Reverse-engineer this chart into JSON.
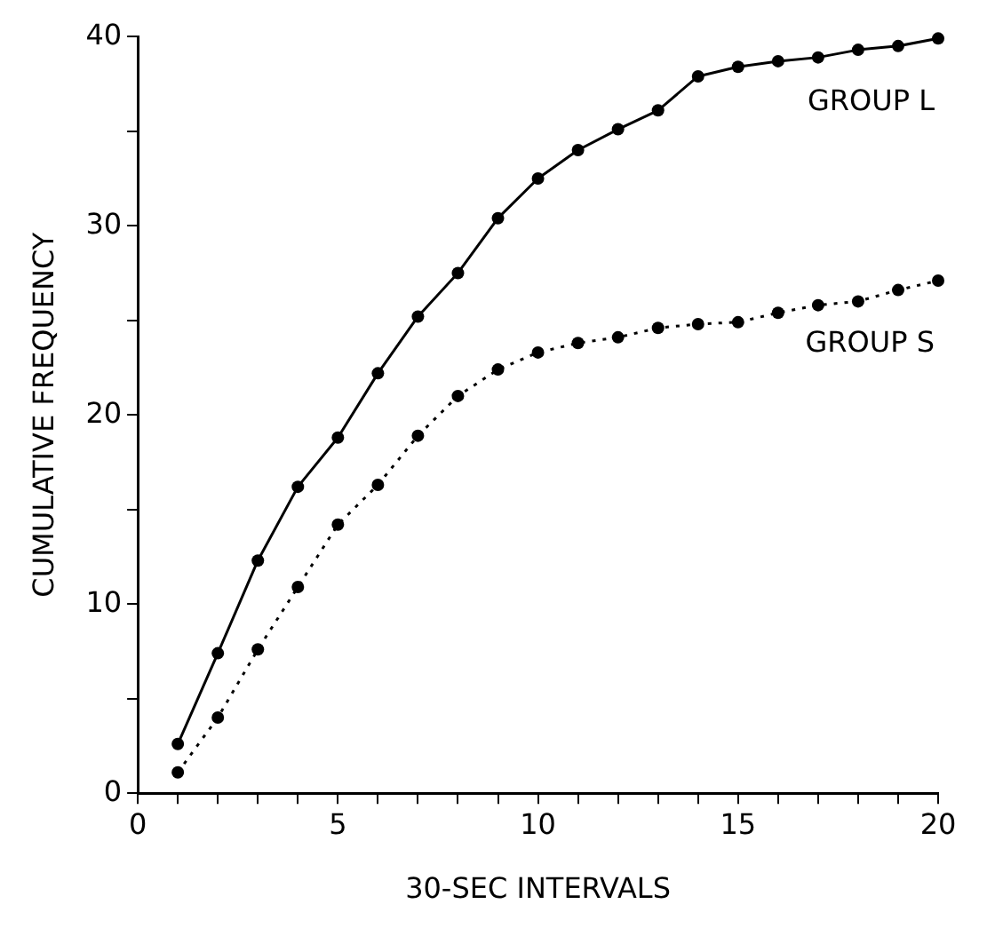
{
  "chart_data": {
    "type": "line",
    "xlabel": "30-SEC INTERVALS",
    "ylabel": "CUMULATIVE FREQUENCY",
    "x": [
      1,
      2,
      3,
      4,
      5,
      6,
      7,
      8,
      9,
      10,
      11,
      12,
      13,
      14,
      15,
      16,
      17,
      18,
      19,
      20
    ],
    "series": [
      {
        "name": "GROUP L",
        "color": "#000000",
        "line_style": "solid",
        "values": [
          2.6,
          7.4,
          12.3,
          16.2,
          18.8,
          22.2,
          25.2,
          27.5,
          30.4,
          32.5,
          34.0,
          35.1,
          36.1,
          37.9,
          38.4,
          38.7,
          38.9,
          39.3,
          39.5,
          39.9
        ]
      },
      {
        "name": "GROUP S",
        "color": "#000000",
        "line_style": "dotted",
        "values": [
          1.1,
          4.0,
          7.6,
          10.9,
          14.2,
          16.3,
          18.9,
          21.0,
          22.4,
          23.3,
          23.8,
          24.1,
          24.6,
          24.8,
          24.9,
          25.4,
          25.8,
          26.0,
          26.6,
          27.1
        ]
      }
    ],
    "xlim": [
      0,
      20
    ],
    "xticks": [
      0,
      {
        "value": 1,
        "label": null
      },
      {
        "value": 2,
        "label": null
      },
      {
        "value": 3,
        "label": null
      },
      {
        "value": 4,
        "label": null
      },
      5,
      {
        "value": 6,
        "label": null
      },
      {
        "value": 7,
        "label": null
      },
      {
        "value": 8,
        "label": null
      },
      {
        "value": 9,
        "label": null
      },
      10,
      {
        "value": 11,
        "label": null
      },
      {
        "value": 12,
        "label": null
      },
      {
        "value": 13,
        "label": null
      },
      {
        "value": 14,
        "label": null
      },
      15,
      {
        "value": 16,
        "label": null
      },
      {
        "value": 17,
        "label": null
      },
      {
        "value": 18,
        "label": null
      },
      {
        "value": 19,
        "label": null
      },
      20
    ],
    "ylim": [
      0,
      40
    ],
    "yticks": [
      0,
      {
        "value": 5,
        "label": null
      },
      10,
      {
        "value": 15,
        "label": null
      },
      20,
      {
        "value": 25,
        "label": null
      },
      30,
      {
        "value": 35,
        "label": null
      },
      40
    ],
    "marker": "circle",
    "grid": false,
    "legend": false
  }
}
